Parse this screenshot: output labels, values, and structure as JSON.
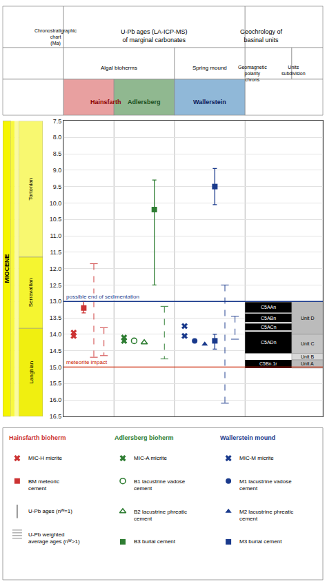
{
  "chart_data": {
    "type": "scatter",
    "ylim": [
      16.5,
      7.5
    ],
    "yticks": [
      7.5,
      {
        "value": 8,
        "label": "8.0"
      },
      8.5,
      {
        "value": 9,
        "label": "9.0"
      },
      9.5,
      {
        "value": 10,
        "label": "10.0"
      },
      10.5,
      {
        "value": 11,
        "label": "11.0"
      },
      11.5,
      {
        "value": 12,
        "label": "12.0"
      },
      12.5,
      {
        "value": 13,
        "label": "13.0"
      },
      13.5,
      {
        "value": 14,
        "label": "14.0"
      },
      14.5,
      {
        "value": 15,
        "label": "15.0"
      },
      15.5,
      {
        "value": 16,
        "label": "16.0"
      },
      16.5
    ],
    "grid": true,
    "tick_labels": "y",
    "header": {
      "chronostratigraphy": "Chronostratigraphic\nchart\n(Ma)",
      "ages": "U-Pb ages (LA-ICP-MS)\nof marginal carbonates",
      "basinal": "Geochrology of\nbasinal units",
      "chrons": "Geomagnetic\npolarity\nchrons",
      "units": "Units\nsubdivision"
    },
    "epoch": {
      "name": "MIOCENE",
      "colors": [
        "#f5f500",
        "#f8f840",
        "#fafaa0"
      ]
    },
    "stages": [
      {
        "name": "Tortonian",
        "y_top": 7.5,
        "y_bot": 11.65,
        "color": "#f8f870"
      },
      {
        "name": "Serravallian",
        "y_top": 11.65,
        "y_bot": 13.82,
        "color": "#f5f530"
      },
      {
        "name": "Langhian",
        "y_top": 13.82,
        "y_bot": 16.5,
        "color": "#f0ef10"
      }
    ],
    "chron_color": "#000000",
    "chrons": [
      {
        "name": "C5AAn",
        "y_top": 13.02,
        "y_bot": 13.34
      },
      {
        "name": "C5ABn",
        "y_top": 13.37,
        "y_bot": 13.63
      },
      {
        "name": "C5ACn",
        "y_top": 13.67,
        "y_bot": 13.88
      },
      {
        "name": "C5ADn",
        "y_top": 13.92,
        "y_bot": 14.58
      },
      {
        "name": "C5Bn.1r",
        "y_top": 14.78,
        "y_bot": 15.03
      }
    ],
    "units": [
      {
        "name": "Unit D",
        "y_top": 13.02,
        "y_bot": 14.0,
        "color": "#bbbbbb"
      },
      {
        "name": "Unit C",
        "y_top": 14.0,
        "y_bot": 14.58,
        "color": "#c4c4c4"
      },
      {
        "name": "Unit B",
        "y_top": 14.58,
        "y_bot": 14.78,
        "color": "#d8d8d8"
      },
      {
        "name": "Unit A",
        "y_top": 14.78,
        "y_bot": 15.03,
        "color": "#bbbbbb"
      }
    ],
    "reference_lines": [
      {
        "y": 13.0,
        "label": "possible end of sedimentation",
        "color": "#1a3a8c"
      },
      {
        "y": 15.0,
        "label": "meteorite impact",
        "color": "#cc2200"
      }
    ],
    "groups": [
      {
        "name": "Hainsfarth",
        "title": "Hainsfarth bioherm",
        "setting": "Algal bioherms",
        "color": "#cc3333",
        "header_color": "#e8a0a0",
        "header_text_color": "#8B0000",
        "series": [
          {
            "name": "MIC-H micrite",
            "marker": "x",
            "values": [
              13.95,
              14.05
            ]
          },
          {
            "name": "BM meteoric\ncement",
            "marker": "square",
            "values": [
              13.2
            ],
            "error_minus": [
              0.2
            ],
            "error_plus": [
              0.15
            ]
          }
        ],
        "ranges": [
          {
            "low": 11.85,
            "high": 14.7
          },
          {
            "low": 13.8,
            "high": 14.65
          }
        ],
        "legend_extra": [
          {
            "name": "U-Pb ages (nᵂ=1)",
            "marker": "bar_single",
            "color": "#888888"
          },
          {
            "name": "U-Pb weighted\naverage ages (nᵂ>1)",
            "marker": "bar_multi",
            "color": "#888888"
          }
        ]
      },
      {
        "name": "Adlersberg",
        "title": "Adlersberg bioherm",
        "setting": "Algal bioherms",
        "color": "#2e7d32",
        "header_color": "#90b890",
        "header_text_color": "#1a4d1a",
        "series": [
          {
            "name": "MIC-A micrite",
            "marker": "x",
            "values": [
              14.1,
              14.2
            ]
          },
          {
            "name": "B1 lacustrine vadose\ncement",
            "marker": "circle-open",
            "values": [
              14.2
            ]
          },
          {
            "name": "B2 lacustrine phreatic\ncement",
            "marker": "triangle-up-open",
            "values": [
              14.25
            ]
          },
          {
            "name": "B3 burial cement",
            "marker": "square",
            "values": [
              10.2
            ],
            "error_minus": [
              0.9
            ],
            "error_plus": [
              2.3
            ]
          }
        ],
        "ranges": [
          {
            "low": 13.15,
            "high": 14.75
          }
        ]
      },
      {
        "name": "Wallerstein",
        "title": "Wallerstein mound",
        "setting": "Spring mound",
        "color": "#1a3a8c",
        "header_color": "#90b8d8",
        "header_text_color": "#0a1a5c",
        "series": [
          {
            "name": "MIC-M micrite",
            "marker": "x",
            "values": [
              13.75,
              14.05
            ]
          },
          {
            "name": "M1 lacustrine vadose\ncement",
            "marker": "circle",
            "values": [
              14.2
            ]
          },
          {
            "name": "M2 lacustrine phreatic\ncement",
            "marker": "triangle-up",
            "values": [
              14.3
            ]
          },
          {
            "name": "M3 burial cement",
            "marker": "square",
            "values": [
              9.5,
              14.2
            ],
            "error_minus": [
              0.55,
              0.2
            ],
            "error_plus": [
              0.55,
              0.25
            ]
          }
        ],
        "ranges": [
          {
            "low": 12.5,
            "high": 16.1
          },
          {
            "low": 13.45,
            "high": 14.15
          }
        ]
      }
    ]
  }
}
